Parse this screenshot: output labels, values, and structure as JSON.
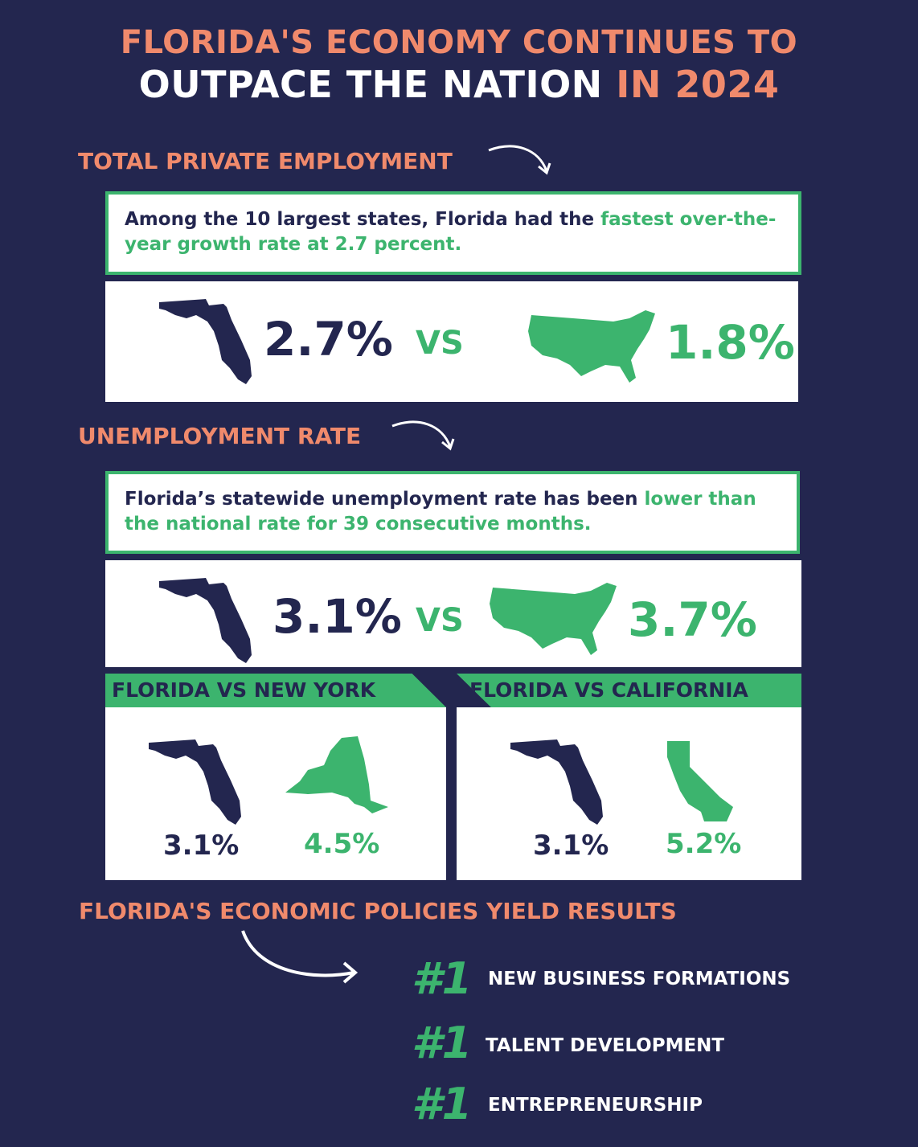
{
  "header": {
    "line1": "FLORIDA'S ECONOMY CONTINUES TO",
    "line2_main": "OUTPACE THE NATION",
    "line2_accent": "IN 2024"
  },
  "employment": {
    "heading": "TOTAL PRIVATE EMPLOYMENT",
    "statement": "Among the 10 largest states, Florida had the",
    "statement_highlight": "fastest over-the-year growth rate at 2.7 percent.",
    "florida": "2.7%",
    "vs": "VS",
    "nation": "1.8%"
  },
  "unemployment": {
    "heading": "UNEMPLOYMENT RATE",
    "statement": "Florida’s statewide unemployment rate has been",
    "statement_highlight": "lower than the national rate for 39 consecutive months.",
    "florida": "3.1%",
    "vs": "VS",
    "nation": "3.7%",
    "comparisons": [
      {
        "label": "FLORIDA VS NEW YORK",
        "florida": "3.1%",
        "other": "4.5%"
      },
      {
        "label": "FLORIDA VS CALIFORNIA",
        "florida": "3.1%",
        "other": "5.2%"
      }
    ]
  },
  "policies": {
    "heading": "FLORIDA'S ECONOMIC POLICIES YIELD RESULTS",
    "rankings": [
      {
        "rank": "#1",
        "label": "NEW BUSINESS FORMATIONS"
      },
      {
        "rank": "#1",
        "label": "TALENT DEVELOPMENT"
      },
      {
        "rank": "#1",
        "label": "ENTREPRENEURSHIP"
      }
    ]
  }
}
